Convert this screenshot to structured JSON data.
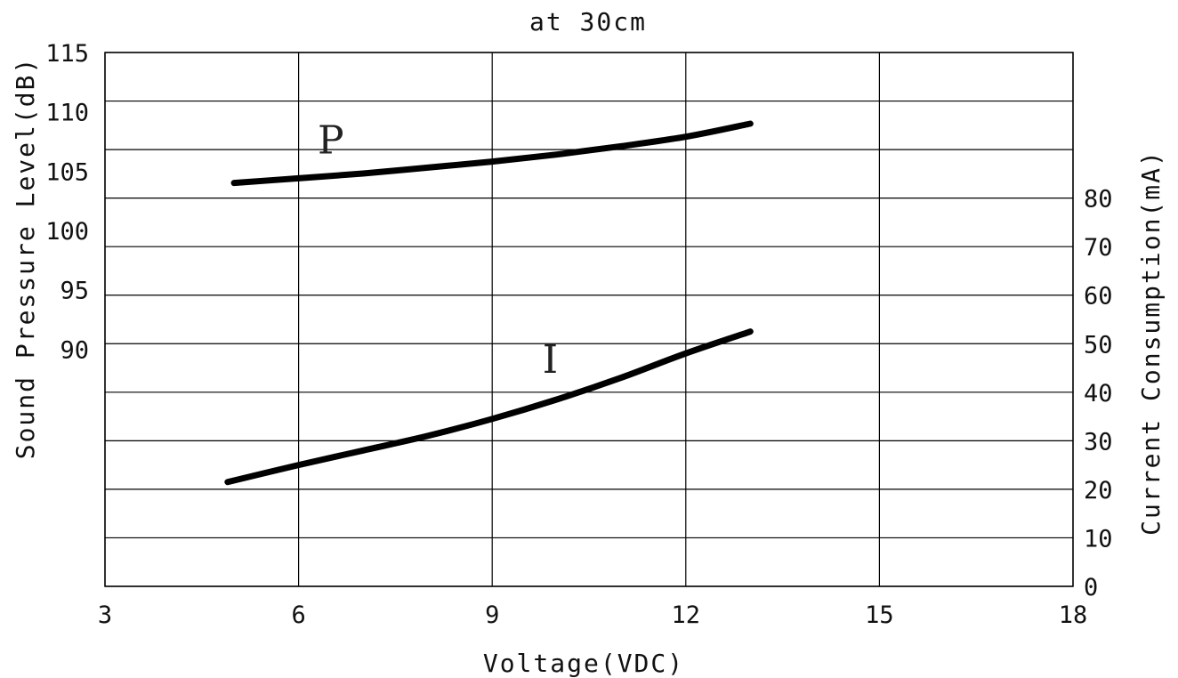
{
  "chart_data": {
    "type": "line",
    "title": "at 30cm",
    "xlabel": "Voltage(VDC)",
    "ylabel_left": "Sound Pressure Level(dB)",
    "ylabel_right": "Current Consumption(mA)",
    "xlim": [
      3,
      18
    ],
    "x_ticks": [
      "3",
      "6",
      "9",
      "12",
      "15",
      "18"
    ],
    "ylim_left": [
      70,
      115
    ],
    "y_left_ticks": [
      "90",
      "95",
      "100",
      "105",
      "110",
      "115"
    ],
    "ylim_right": [
      0,
      110
    ],
    "y_right_ticks": [
      "0",
      "10",
      "20",
      "30",
      "40",
      "50",
      "60",
      "70",
      "80"
    ],
    "grid": true,
    "series": [
      {
        "name": "P",
        "axis": "left",
        "x": [
          5,
          6,
          7,
          8,
          9,
          10,
          11,
          12,
          13
        ],
        "y": [
          104,
          104.4,
          104.8,
          105.3,
          105.8,
          106.4,
          107.1,
          107.9,
          109
        ]
      },
      {
        "name": "I",
        "axis": "right",
        "x": [
          4.9,
          6,
          7,
          8,
          9,
          10,
          11,
          12,
          13
        ],
        "y": [
          21.5,
          25,
          28,
          31,
          34.5,
          38.5,
          43,
          48,
          52.5
        ]
      }
    ],
    "series_label_anchor": [
      {
        "name": "P",
        "x": 6.5,
        "y_left": 106.5
      },
      {
        "name": "I",
        "x": 9.9,
        "y_right": 44
      }
    ]
  }
}
